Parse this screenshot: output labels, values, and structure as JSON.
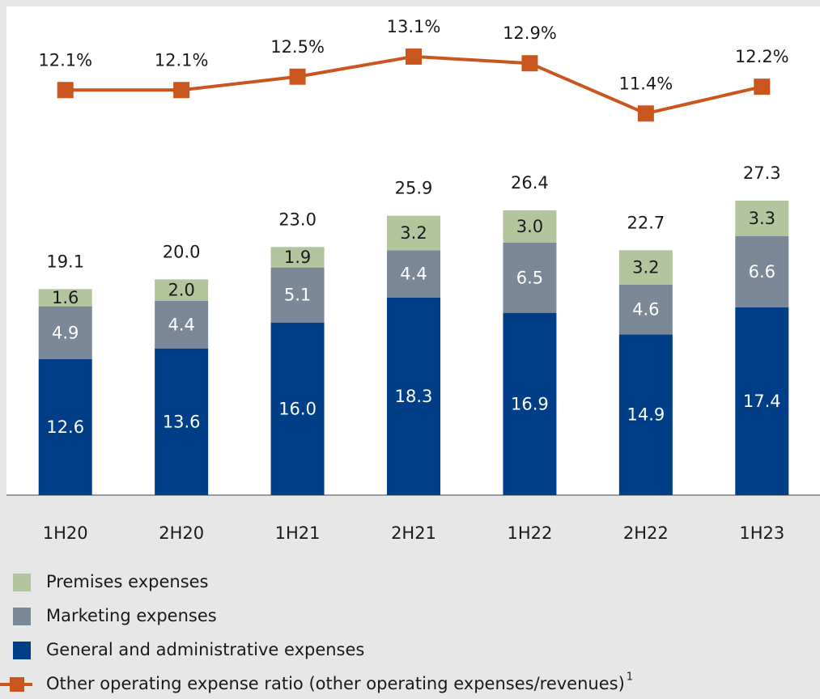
{
  "chart_data": {
    "type": "bar",
    "stacked": true,
    "categories": [
      "1H20",
      "2H20",
      "1H21",
      "2H21",
      "1H22",
      "2H22",
      "1H23"
    ],
    "series": [
      {
        "name": "General and administrative expenses",
        "color": "#003f87",
        "values": [
          12.6,
          13.6,
          16.0,
          18.3,
          16.9,
          14.9,
          17.4
        ],
        "value_labels": [
          "12.6",
          "13.6",
          "16.0",
          "18.3",
          "16.9",
          "14.9",
          "17.4"
        ],
        "label_color": "#ffffff"
      },
      {
        "name": "Marketing expenses",
        "color": "#7a8898",
        "values": [
          4.9,
          4.4,
          5.1,
          4.4,
          6.5,
          4.6,
          6.6
        ],
        "value_labels": [
          "4.9",
          "4.4",
          "5.1",
          "4.4",
          "6.5",
          "4.6",
          "6.6"
        ],
        "label_color": "#ffffff"
      },
      {
        "name": "Premises expenses",
        "color": "#b3c59c",
        "values": [
          1.6,
          2.0,
          1.9,
          3.2,
          3.0,
          3.2,
          3.3
        ],
        "value_labels": [
          "1.6",
          "2.0",
          "1.9",
          "3.2",
          "3.0",
          "3.2",
          "3.3"
        ],
        "label_color": "#1a1a1a"
      },
      {
        "name": "Other operating expense ratio (other operating expenses/revenues)",
        "type": "line",
        "axis": "y2",
        "color": "#c9561f",
        "values": [
          12.1,
          12.1,
          12.5,
          13.1,
          12.9,
          11.4,
          12.2
        ],
        "value_labels": [
          "12.1%",
          "12.1%",
          "12.5%",
          "13.1%",
          "12.9%",
          "11.4%",
          "12.2%"
        ],
        "label_color": "#1a1a1a"
      }
    ],
    "totals": [
      19.1,
      20.0,
      23.0,
      25.9,
      26.4,
      22.7,
      27.3
    ],
    "total_labels": [
      "19.1",
      "20.0",
      "23.0",
      "25.9",
      "26.4",
      "22.7",
      "27.3"
    ],
    "footnote_marker": "1",
    "ylim": [
      0,
      45
    ],
    "y2lim": [
      0,
      14.5
    ]
  }
}
